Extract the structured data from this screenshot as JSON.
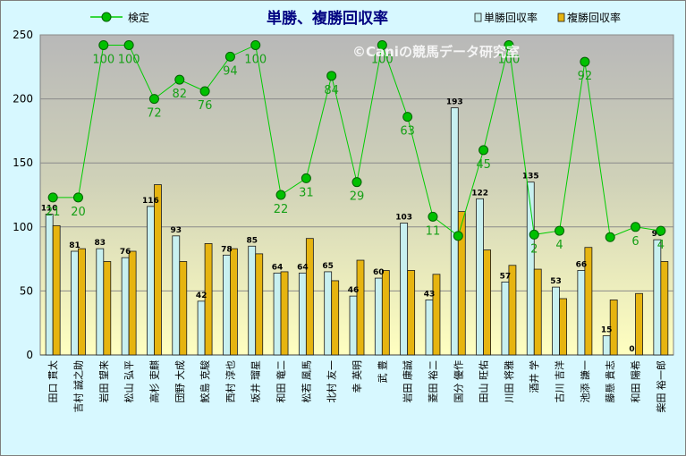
{
  "chart_data": {
    "type": "bar",
    "title": "単勝、複勝回収率",
    "watermark": "©Caniの競馬データ研究室",
    "ylim": [
      0,
      250
    ],
    "yticks": [
      0,
      50,
      100,
      150,
      200,
      250
    ],
    "grid": true,
    "legend_position": "top",
    "categories": [
      "田口 貫太",
      "吉村 誠之助",
      "岩田 望来",
      "松山 弘平",
      "高杉 吏麒",
      "団野 大成",
      "鮫島 克駿",
      "西村 淳也",
      "坂井 瑠星",
      "和田 竜二",
      "松若 風馬",
      "北村 友一",
      "幸 英明",
      "武 豊",
      "岩田 康誠",
      "菱田 裕二",
      "国分 優作",
      "田山 旺佑",
      "川田 将雅",
      "酒井 学",
      "古川 吉洋",
      "池添 謙一",
      "藤懸 貴志",
      "和田 陽希",
      "柴田 裕一郎"
    ],
    "series": [
      {
        "name": "単勝回収率",
        "kind": "bar",
        "color": "#c8f0f0",
        "values": [
          110,
          81,
          83,
          76,
          116,
          93,
          42,
          78,
          85,
          64,
          64,
          65,
          46,
          60,
          103,
          43,
          193,
          122,
          57,
          135,
          53,
          66,
          15,
          0,
          90
        ]
      },
      {
        "name": "複勝回収率",
        "kind": "bar",
        "color": "#e6b410",
        "values": [
          101,
          83,
          73,
          81,
          133,
          73,
          87,
          83,
          79,
          65,
          91,
          58,
          74,
          66,
          66,
          63,
          112,
          82,
          70,
          67,
          44,
          84,
          43,
          48,
          73
        ]
      },
      {
        "name": "検定",
        "kind": "line",
        "color": "#00cc00",
        "values": [
          21,
          20,
          100,
          100,
          72,
          82,
          76,
          94,
          100,
          22,
          31,
          84,
          29,
          100,
          63,
          11,
          1,
          45,
          100,
          2,
          4,
          92,
          1,
          6,
          4
        ],
        "plot_values": [
          123,
          123,
          242,
          242,
          200,
          215,
          206,
          233,
          242,
          125,
          138,
          218,
          135,
          242,
          186,
          108,
          93,
          160,
          242,
          94,
          97,
          229,
          92,
          100,
          97
        ]
      }
    ],
    "bar_value_labels": [
      "110",
      "81",
      "83",
      "76",
      "116",
      "93",
      "42",
      "78",
      "85",
      "64",
      "64",
      "65",
      "46",
      "60",
      "103",
      "43",
      "193",
      "122",
      "57",
      "135",
      "53",
      "66",
      "15",
      "0",
      "90"
    ],
    "line_value_labels": [
      "21",
      "20",
      "100",
      "100",
      "72",
      "82",
      "76",
      "94",
      "100",
      "22",
      "31",
      "84",
      "29",
      "100",
      "63",
      "11",
      "",
      "45",
      "100",
      "2",
      "4",
      "92",
      "",
      "6",
      "4"
    ]
  }
}
